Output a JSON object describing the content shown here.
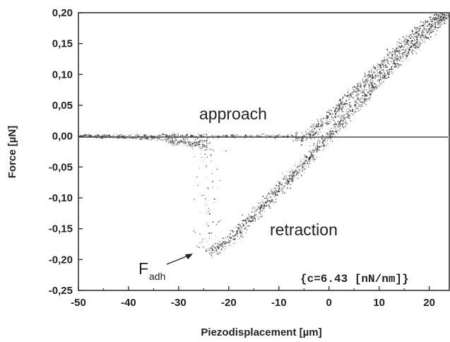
{
  "chart_data": {
    "type": "scatter",
    "xlabel": "Piezodisplacement [µm]",
    "ylabel": "Force [µN]",
    "xlim": [
      -50,
      24
    ],
    "ylim": [
      -0.25,
      0.2
    ],
    "x_ticks": [
      -50,
      -40,
      -30,
      -20,
      -10,
      0,
      10,
      20
    ],
    "x_tick_labels": [
      "-50",
      "-40",
      "-30",
      "-20",
      "-10",
      "0",
      "10",
      "20"
    ],
    "y_ticks": [
      0.2,
      0.15,
      0.1,
      0.05,
      0.0,
      -0.05,
      -0.1,
      -0.15,
      -0.2,
      -0.25
    ],
    "y_tick_labels": [
      "0,20",
      "0,15",
      "0,10",
      "0,05",
      "0,00",
      "-0,05",
      "-0,10",
      "-0,15",
      "-0,20",
      "-0,25"
    ],
    "grid": false,
    "series": [
      {
        "name": "approach",
        "x": [
          -50,
          -45,
          -40,
          -35,
          -30,
          -26,
          -24,
          -22,
          -20,
          -15,
          -10,
          -7,
          -5,
          0,
          5,
          10,
          15,
          20,
          24
        ],
        "y": [
          0.0,
          0.0,
          0.0,
          0.0,
          0.0,
          0.0,
          0.0,
          0.0,
          0.0,
          0.0,
          0.0,
          0.0,
          -0.005,
          0.03,
          0.07,
          0.11,
          0.15,
          0.185,
          0.2
        ]
      },
      {
        "name": "retraction",
        "x": [
          -50,
          -45,
          -40,
          -35,
          -32,
          -29,
          -27,
          -25,
          -24,
          -24,
          -20,
          -15,
          -10,
          -5,
          0,
          5,
          10,
          15,
          20,
          24
        ],
        "y": [
          0.0,
          -0.001,
          -0.002,
          -0.004,
          -0.006,
          -0.009,
          -0.012,
          -0.016,
          -0.019,
          -0.19,
          -0.17,
          -0.13,
          -0.085,
          -0.045,
          0.0,
          0.045,
          0.09,
          0.13,
          0.17,
          0.2
        ]
      }
    ],
    "annotations": {
      "approach": "approach",
      "retraction": "retraction",
      "fadh_main": "F",
      "fadh_sub": "adh",
      "stiffness": "{c=6.43 [nN/nm]}"
    }
  },
  "colors": {
    "points": "#1a1a1a",
    "axis": "#333333",
    "background": "#ffffff"
  }
}
